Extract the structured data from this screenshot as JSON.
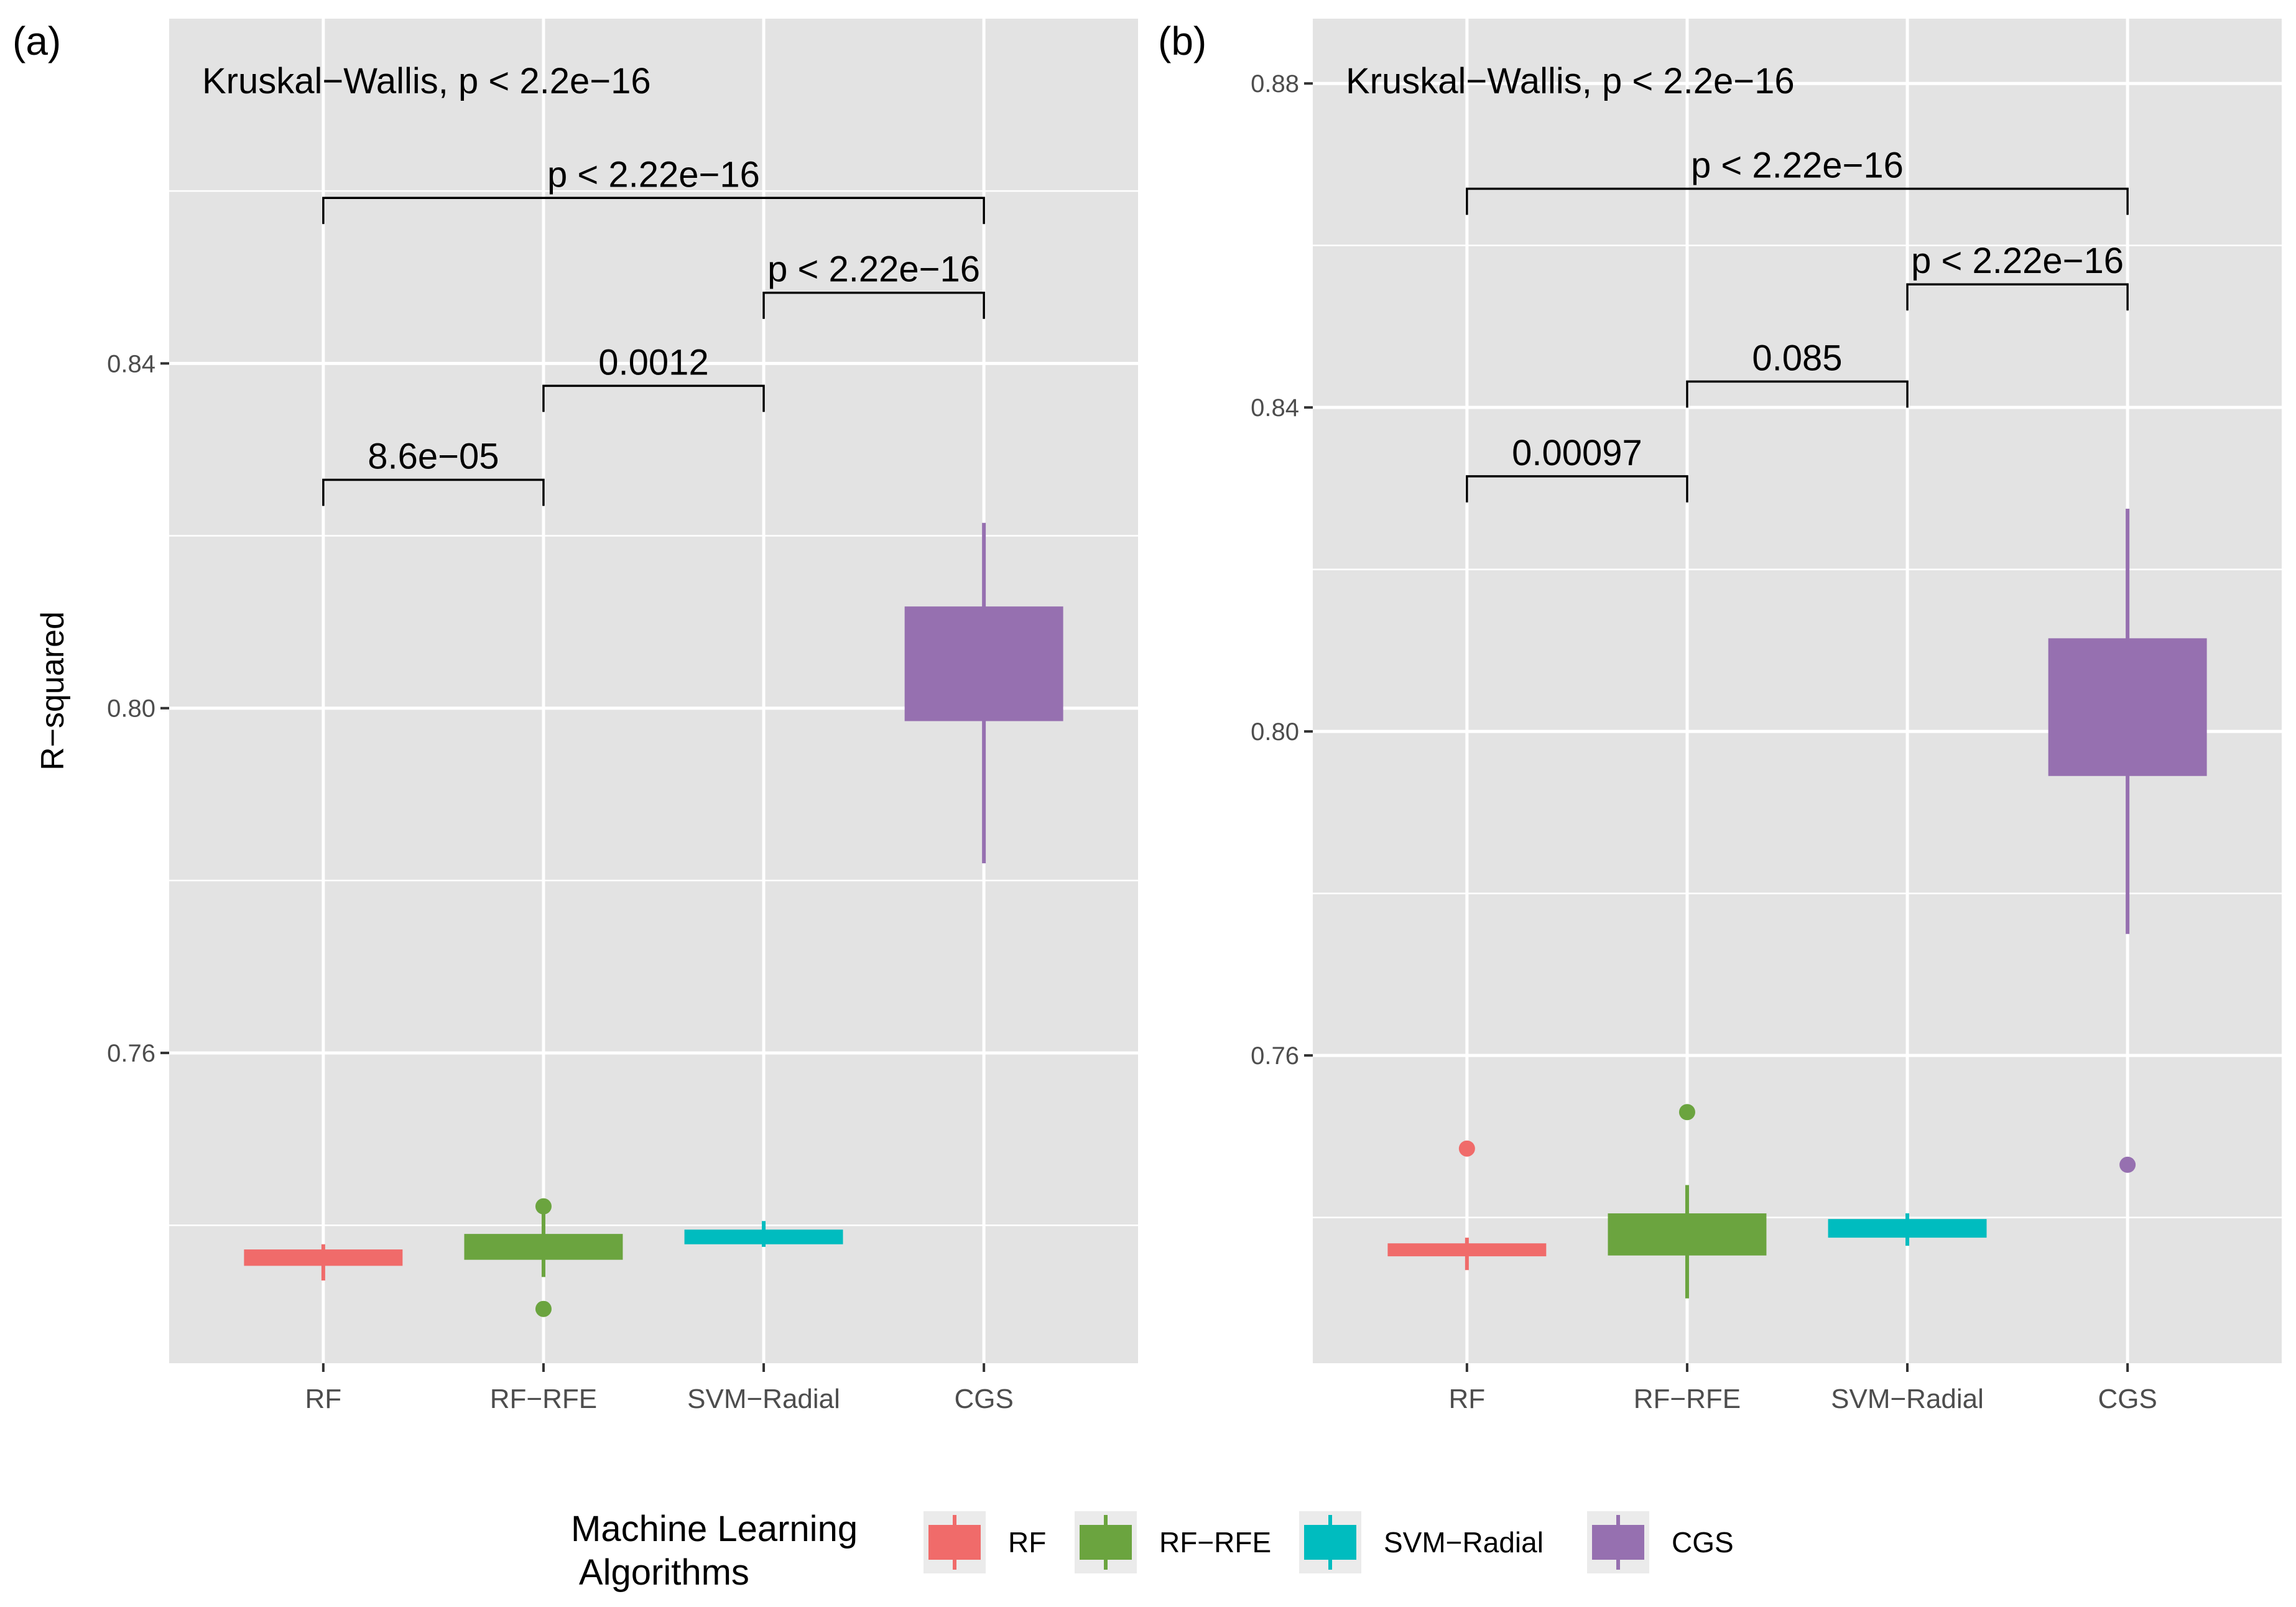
{
  "chart_data": [
    {
      "type": "box",
      "panel_label": "(a)",
      "ylabel": "R−squared",
      "ylim": [
        0.724,
        0.88
      ],
      "yticks": [
        0.76,
        0.8,
        0.84
      ],
      "ytick_labels": [
        "0.76",
        "0.80",
        "0.84"
      ],
      "minor_gridlines": [
        0.74,
        0.78,
        0.82,
        0.86
      ],
      "categories": [
        "RF",
        "RF−RFE",
        "SVM−Radial",
        "CGS"
      ],
      "series": [
        {
          "name": "RF",
          "q1": 0.7353,
          "q3": 0.7372,
          "lower": 0.7336,
          "upper": 0.7378,
          "outliers": []
        },
        {
          "name": "RF−RFE",
          "q1": 0.736,
          "q3": 0.739,
          "lower": 0.734,
          "upper": 0.7415,
          "outliers": [
            0.7422,
            0.7303
          ]
        },
        {
          "name": "SVM−Radial",
          "q1": 0.7378,
          "q3": 0.7395,
          "lower": 0.7375,
          "upper": 0.7405,
          "outliers": []
        },
        {
          "name": "CGS",
          "q1": 0.7985,
          "q3": 0.8118,
          "lower": 0.782,
          "upper": 0.8215,
          "outliers": []
        }
      ],
      "annotations": {
        "global_test": "Kruskal−Wallis, p < 2.2e−16",
        "comparisons": [
          {
            "from": "RF",
            "to": "RF−RFE",
            "label": "8.6e−05",
            "y": 0.8265
          },
          {
            "from": "RF−RFE",
            "to": "SVM−Radial",
            "label": "0.0012",
            "y": 0.8374
          },
          {
            "from": "SVM−Radial",
            "to": "CGS",
            "label": "p < 2.22e−16",
            "y": 0.8482
          },
          {
            "from": "RF",
            "to": "CGS",
            "label": "p < 2.22e−16",
            "y": 0.8592
          }
        ]
      }
    },
    {
      "type": "box",
      "panel_label": "(b)",
      "ylabel": "",
      "ylim": [
        0.722,
        0.888
      ],
      "yticks": [
        0.76,
        0.8,
        0.84,
        0.88
      ],
      "ytick_labels": [
        "0.76",
        "0.80",
        "0.84",
        "0.88"
      ],
      "minor_gridlines": [
        0.74,
        0.78,
        0.82,
        0.86
      ],
      "categories": [
        "RF",
        "RF−RFE",
        "SVM−Radial",
        "CGS"
      ],
      "series": [
        {
          "name": "RF",
          "q1": 0.7352,
          "q3": 0.7368,
          "lower": 0.7335,
          "upper": 0.7375,
          "outliers": [
            0.7485
          ]
        },
        {
          "name": "RF−RFE",
          "q1": 0.7353,
          "q3": 0.7405,
          "lower": 0.73,
          "upper": 0.744,
          "outliers": [
            0.753
          ]
        },
        {
          "name": "SVM−Radial",
          "q1": 0.7375,
          "q3": 0.7398,
          "lower": 0.7365,
          "upper": 0.7405,
          "outliers": []
        },
        {
          "name": "CGS",
          "q1": 0.7945,
          "q3": 0.8115,
          "lower": 0.775,
          "upper": 0.8275,
          "outliers": [
            0.7465
          ]
        }
      ],
      "annotations": {
        "global_test": "Kruskal−Wallis, p < 2.2e−16",
        "comparisons": [
          {
            "from": "RF",
            "to": "RF−RFE",
            "label": "0.00097",
            "y": 0.8315
          },
          {
            "from": "RF−RFE",
            "to": "SVM−Radial",
            "label": "0.085",
            "y": 0.8432
          },
          {
            "from": "SVM−Radial",
            "to": "CGS",
            "label": "p < 2.22e−16",
            "y": 0.8552
          },
          {
            "from": "RF",
            "to": "CGS",
            "label": "p < 2.22e−16",
            "y": 0.867
          }
        ]
      }
    }
  ],
  "legend": {
    "title_line1": "Machine Learning",
    "title_line2": " Algorithms",
    "position": "bottom",
    "items": [
      {
        "label": "RF",
        "color": "#f06b6a"
      },
      {
        "label": "RF−RFE",
        "color": "#6ba43f"
      },
      {
        "label": "SVM−Radial",
        "color": "#00bcbf"
      },
      {
        "label": "CGS",
        "color": "#9670b0"
      }
    ]
  },
  "style": {
    "panel_bg": "#e3e3e3",
    "grid_color": "#ffffff",
    "text_color": "#000000",
    "tick_text_color": "#4d4d4d"
  }
}
